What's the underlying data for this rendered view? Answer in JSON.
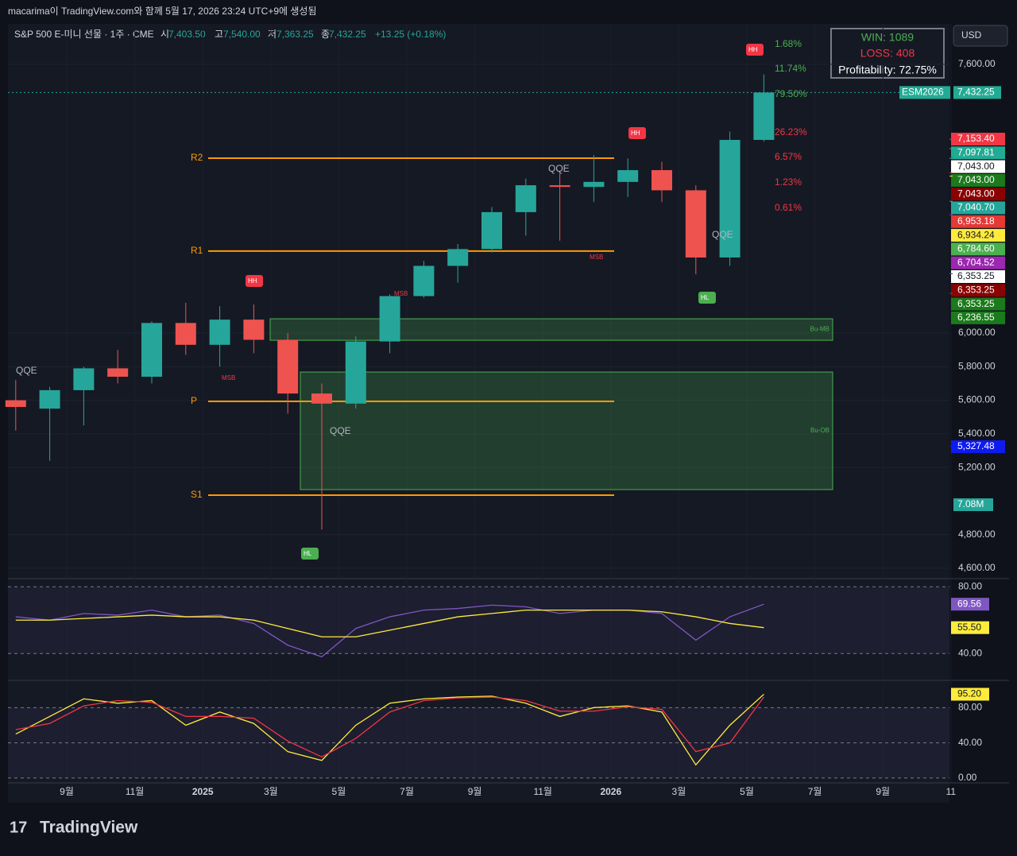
{
  "header": {
    "caption": "macarima이 TradingView.com와 함께 5월 17, 2026 23:24 UTC+9에 생성됨",
    "symbol": "S&P 500 E-미니 선물 · 1주 · CME",
    "open_key": "시",
    "open": "7,403.50",
    "high_key": "고",
    "high": "7,540.00",
    "low_key": "저",
    "low": "7,363.25",
    "close_key": "종",
    "close": "7,432.25",
    "change": "+13.25 (+0.18%)",
    "currency": "USD"
  },
  "stats": {
    "win": "WIN: 1089",
    "loss": "LOSS: 408",
    "profitability": "Profitability: 72.75%"
  },
  "chart_data": [
    {
      "type": "candlestick",
      "name": "price",
      "x": [
        "2024-07",
        "2024-08",
        "2024-09",
        "2024-10",
        "2024-11",
        "2024-12",
        "2025-01",
        "2025-02",
        "2025-03",
        "2025-04",
        "2025-05",
        "2025-06",
        "2025-07",
        "2025-08",
        "2025-09",
        "2025-10",
        "2025-11",
        "2025-12",
        "2026-01",
        "2026-02",
        "2026-03",
        "2026-04",
        "2026-05"
      ],
      "open": [
        5600,
        5550,
        5660,
        5790,
        5740,
        6060,
        5930,
        6080,
        5960,
        5640,
        5580,
        5950,
        6220,
        6400,
        6500,
        6720,
        6880,
        6870,
        6900,
        6970,
        6850,
        6450,
        7150
      ],
      "high": [
        5720,
        5680,
        5800,
        5900,
        6070,
        6180,
        6160,
        6170,
        6000,
        5700,
        5980,
        6230,
        6430,
        6530,
        6750,
        6920,
        6950,
        7060,
        7040,
        7020,
        6880,
        7200,
        7540
      ],
      "low": [
        5420,
        5240,
        5450,
        5700,
        5700,
        5870,
        5800,
        5880,
        5520,
        4830,
        5550,
        5880,
        6210,
        6300,
        6480,
        6580,
        6550,
        6780,
        6810,
        6780,
        6350,
        6400,
        7140
      ],
      "close": [
        5560,
        5660,
        5790,
        5740,
        6060,
        5930,
        6080,
        5960,
        5640,
        5580,
        5950,
        6220,
        6400,
        6500,
        6720,
        6880,
        6870,
        6900,
        6970,
        6850,
        6450,
        7150,
        7432.25
      ],
      "up_color": "#26a69a",
      "down_color": "#ef5350",
      "ylim": [
        4538,
        7841
      ],
      "yticks": [
        {
          "value": 7600,
          "label": "7,600.00"
        },
        {
          "value": 6000,
          "label": "6,000.00"
        },
        {
          "value": 5800,
          "label": "5,800.00"
        },
        {
          "value": 5600,
          "label": "5,600.00"
        },
        {
          "value": 5400,
          "label": "5,400.00"
        },
        {
          "value": 5200,
          "label": "5,200.00"
        },
        {
          "value": 4800,
          "label": "4,800.00"
        },
        {
          "value": 4600,
          "label": "4,600.00"
        }
      ],
      "xticks": [
        {
          "value": "2024-09",
          "label": "9월"
        },
        {
          "value": "2024-11",
          "label": "11월"
        },
        {
          "value": "2025-01",
          "label": "2025"
        },
        {
          "value": "2025-03",
          "label": "3월"
        },
        {
          "value": "2025-05",
          "label": "5월"
        },
        {
          "value": "2025-07",
          "label": "7월"
        },
        {
          "value": "2025-09",
          "label": "9월"
        },
        {
          "value": "2025-11",
          "label": "11월"
        },
        {
          "value": "2026-01",
          "label": "2026"
        },
        {
          "value": "2026-03",
          "label": "3월"
        },
        {
          "value": "2026-05",
          "label": "5월"
        },
        {
          "value": "2026-07",
          "label": "7월"
        },
        {
          "value": "2026-09",
          "label": "9월"
        },
        {
          "value": "2026-11",
          "label": "11"
        }
      ],
      "levels": [
        {
          "name": "R2",
          "value": 7041
        },
        {
          "name": "R1",
          "value": 6488
        },
        {
          "name": "P",
          "value": 5593
        },
        {
          "name": "S1",
          "value": 5035
        }
      ],
      "zones": [
        {
          "name": "Bu-MB",
          "top": 6085,
          "bottom": 5957
        },
        {
          "name": "Bu-OB",
          "top": 5768,
          "bottom": 5068
        }
      ],
      "last_price": {
        "name": "ESM2026",
        "value": 7432.25,
        "label": "7,432.25"
      },
      "price_tags": [
        {
          "value": 7153.4,
          "label": "7,153.40",
          "color": "#f23645"
        },
        {
          "value": 7097.81,
          "label": "7,097.81",
          "color": "#22ab94"
        },
        {
          "value": 7043.0,
          "label": "7,043.00",
          "color": "#ffffff"
        },
        {
          "value": 7043.0,
          "label": "7,043.00",
          "color": "#1b7a1b"
        },
        {
          "value": 7043.0,
          "label": "7,043.00",
          "color": "#8b0000"
        },
        {
          "value": 7040.7,
          "label": "7,040.70",
          "color": "#26a69a"
        },
        {
          "value": 6953.18,
          "label": "6,953.18",
          "color": "#e53935"
        },
        {
          "value": 6934.24,
          "label": "6,934.24",
          "color": "#ffeb3b"
        },
        {
          "value": 6784.6,
          "label": "6,784.60",
          "color": "#4caf50"
        },
        {
          "value": 6704.52,
          "label": "6,704.52",
          "color": "#9c27b0"
        },
        {
          "value": 6353.25,
          "label": "6,353.25",
          "color": "#ffffff"
        },
        {
          "value": 6353.25,
          "label": "6,353.25",
          "color": "#8b0000"
        },
        {
          "value": 6353.25,
          "label": "6,353.25",
          "color": "#1b7a1b"
        },
        {
          "value": 6236.55,
          "label": "6,236.55",
          "color": "#1b7a1b"
        },
        {
          "value": 5327.48,
          "label": "5,327.48",
          "color": "#0d1bf0"
        }
      ],
      "percent_labels": [
        {
          "label": "1.68%",
          "color": "#4caf50"
        },
        {
          "label": "11.74%",
          "color": "#4caf50"
        },
        {
          "label": "79.50%",
          "color": "#4caf50"
        },
        {
          "label": "26.23%",
          "color": "#f23645"
        },
        {
          "label": "6.57%",
          "color": "#f23645"
        },
        {
          "label": "1.23%",
          "color": "#f23645"
        },
        {
          "label": "0.61%",
          "color": "#f23645"
        }
      ],
      "annotations": [
        "QQE",
        "QQE",
        "QQE",
        "QQE",
        "MSB",
        "MSB",
        "MSB",
        "HH",
        "HH",
        "HH",
        "HL",
        "HL"
      ],
      "volume_label": "7.08M"
    },
    {
      "type": "line",
      "name": "rsi",
      "x": [
        "2024-07",
        "2024-08",
        "2024-09",
        "2024-10",
        "2024-11",
        "2024-12",
        "2025-01",
        "2025-02",
        "2025-03",
        "2025-04",
        "2025-05",
        "2025-06",
        "2025-07",
        "2025-08",
        "2025-09",
        "2025-10",
        "2025-11",
        "2025-12",
        "2026-01",
        "2026-02",
        "2026-03",
        "2026-04",
        "2026-05"
      ],
      "series": [
        {
          "color": "#7e57c2",
          "values": [
            62,
            60,
            64,
            63,
            66,
            62,
            63,
            58,
            45,
            38,
            55,
            62,
            66,
            67,
            69,
            68,
            64,
            66,
            66,
            64,
            48,
            62,
            69.56
          ],
          "value_label": "69.56"
        },
        {
          "color": "#ffeb3b",
          "values": [
            60,
            60,
            61,
            62,
            63,
            62,
            62,
            60,
            55,
            50,
            50,
            54,
            58,
            62,
            64,
            66,
            66,
            66,
            66,
            65,
            62,
            58,
            55.5
          ],
          "value_label": "55.50"
        }
      ],
      "ylim": [
        23.9,
        84.9
      ],
      "yticks": [
        {
          "value": 80,
          "label": "80.00"
        },
        {
          "value": 40,
          "label": "40.00"
        }
      ]
    },
    {
      "type": "line",
      "name": "stochastic",
      "x": [
        "2024-07",
        "2024-08",
        "2024-09",
        "2024-10",
        "2024-11",
        "2024-12",
        "2025-01",
        "2025-02",
        "2025-03",
        "2025-04",
        "2025-05",
        "2025-06",
        "2025-07",
        "2025-08",
        "2025-09",
        "2025-10",
        "2025-11",
        "2025-12",
        "2026-01",
        "2026-02",
        "2026-03",
        "2026-04",
        "2026-05"
      ],
      "series": [
        {
          "color": "#ffeb3b",
          "values": [
            50,
            70,
            90,
            85,
            88,
            60,
            75,
            62,
            30,
            20,
            60,
            85,
            90,
            92,
            93,
            85,
            70,
            80,
            82,
            75,
            15,
            60,
            95.2
          ],
          "value_label": "95.20"
        },
        {
          "color": "#f23645",
          "values": [
            55,
            62,
            82,
            88,
            86,
            70,
            70,
            68,
            42,
            24,
            45,
            75,
            88,
            91,
            92,
            88,
            76,
            76,
            81,
            78,
            30,
            40,
            92
          ]
        }
      ],
      "ylim": [
        -5.5,
        111
      ],
      "yticks": [
        {
          "value": 80,
          "label": "80.00"
        },
        {
          "value": 40,
          "label": "40.00"
        },
        {
          "value": 0,
          "label": "0.00"
        }
      ]
    }
  ],
  "footer": {
    "logo": "TradingView"
  }
}
